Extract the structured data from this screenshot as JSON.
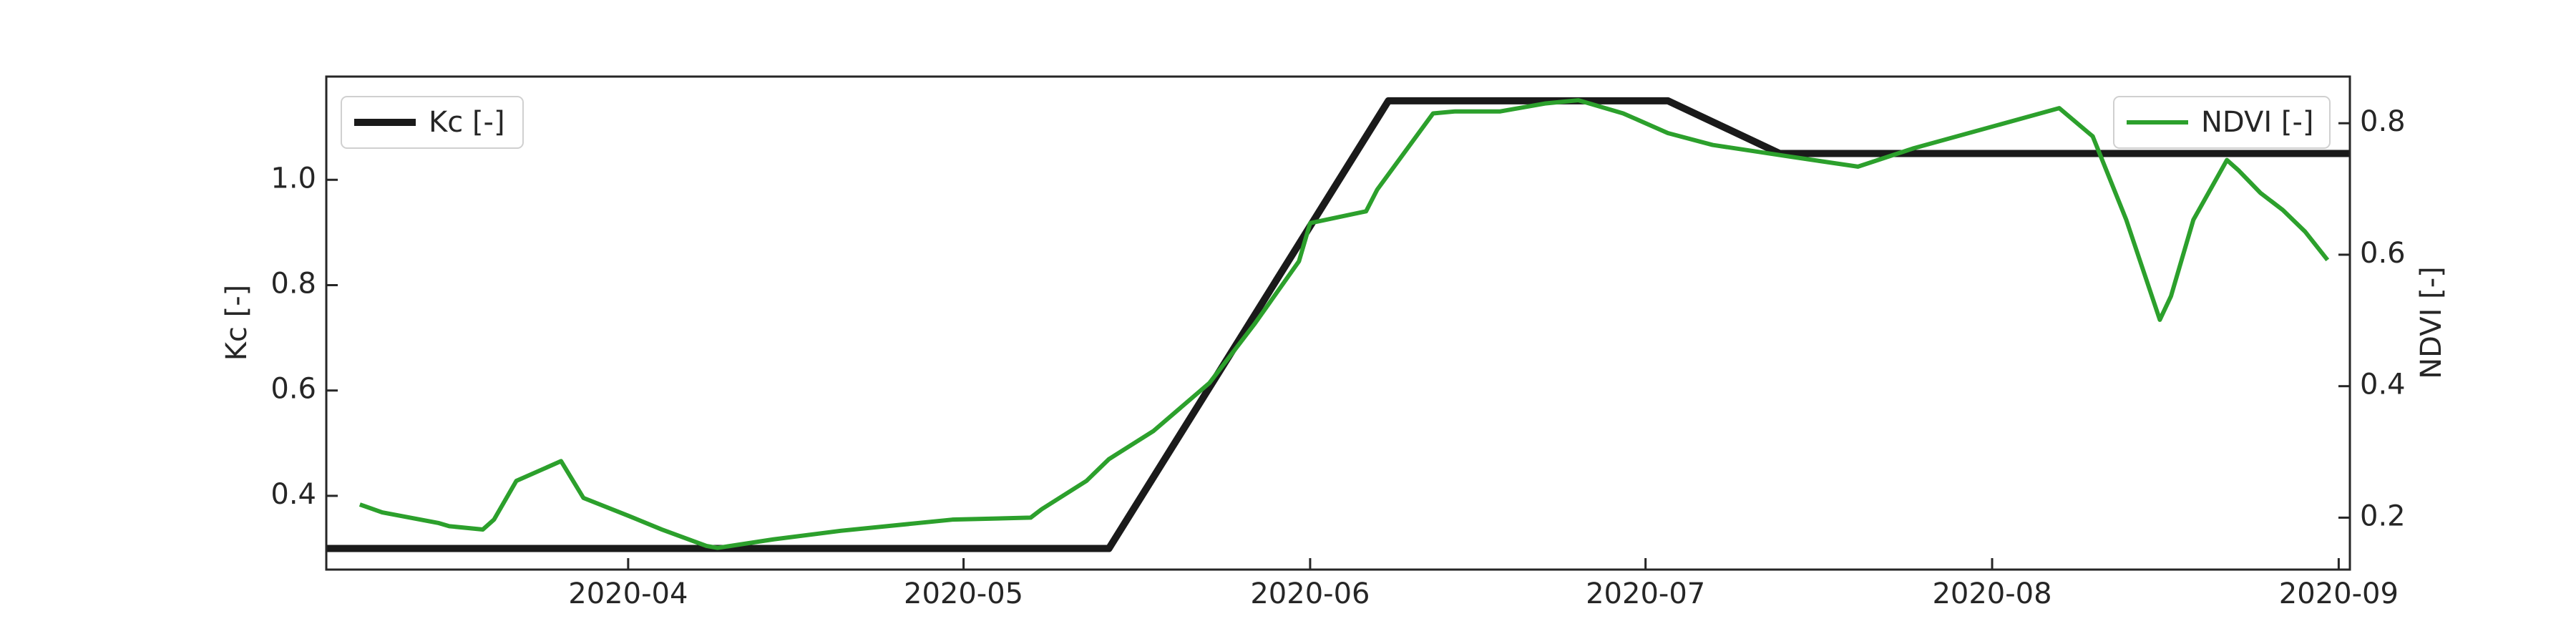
{
  "chart_data": {
    "type": "line",
    "xlim": [
      "2020-03-05",
      "2020-09-02"
    ],
    "xticks": [
      {
        "value": "2020-04-01",
        "label": "2020-04"
      },
      {
        "value": "2020-05-01",
        "label": "2020-05"
      },
      {
        "value": "2020-06-01",
        "label": "2020-06"
      },
      {
        "value": "2020-07-01",
        "label": "2020-07"
      },
      {
        "value": "2020-08-01",
        "label": "2020-08"
      },
      {
        "value": "2020-09-01",
        "label": "2020-09"
      }
    ],
    "ylabel": "Kc [-]",
    "ylim": [
      0.26,
      1.196
    ],
    "yticks": [
      0.4,
      0.6,
      0.8,
      {
        "value": 1,
        "label": "1.0"
      }
    ],
    "y2label": "NDVI [-]",
    "y2lim": [
      0.121,
      0.871
    ],
    "y2ticks": [
      0.2,
      0.4,
      0.6,
      0.8
    ],
    "series": [
      {
        "name": "Kc [-]",
        "color": "#1a1a1a",
        "axis": "y",
        "legend": "upper left",
        "x": [
          "2020-03-05",
          "2020-05-14",
          "2020-06-08",
          "2020-07-03",
          "2020-07-13",
          "2020-09-02"
        ],
        "values": [
          0.3,
          0.3,
          1.15,
          1.15,
          1.05,
          1.05
        ]
      },
      {
        "name": "NDVI [-]",
        "color": "#2ca02c",
        "axis": "y2",
        "legend": "upper right",
        "x": [
          "2020-03-08",
          "2020-03-10",
          "2020-03-15",
          "2020-03-16",
          "2020-03-19",
          "2020-03-20",
          "2020-03-22",
          "2020-03-26",
          "2020-03-28",
          "2020-04-01",
          "2020-04-04",
          "2020-04-08",
          "2020-04-09",
          "2020-04-14",
          "2020-04-20",
          "2020-04-30",
          "2020-05-07",
          "2020-05-08",
          "2020-05-12",
          "2020-05-14",
          "2020-05-18",
          "2020-05-23",
          "2020-05-27",
          "2020-05-31",
          "2020-06-01",
          "2020-06-06",
          "2020-06-07",
          "2020-06-12",
          "2020-06-14",
          "2020-06-18",
          "2020-06-22",
          "2020-06-25",
          "2020-06-29",
          "2020-07-03",
          "2020-07-07",
          "2020-07-14",
          "2020-07-20",
          "2020-07-25",
          "2020-08-07",
          "2020-08-10",
          "2020-08-13",
          "2020-08-16",
          "2020-08-17",
          "2020-08-19",
          "2020-08-22",
          "2020-08-23",
          "2020-08-25",
          "2020-08-27",
          "2020-08-29",
          "2020-08-31"
        ],
        "values": [
          0.22,
          0.208,
          0.192,
          0.187,
          0.182,
          0.197,
          0.256,
          0.286,
          0.23,
          0.203,
          0.182,
          0.157,
          0.154,
          0.167,
          0.18,
          0.197,
          0.2,
          0.213,
          0.256,
          0.289,
          0.332,
          0.405,
          0.494,
          0.59,
          0.648,
          0.666,
          0.699,
          0.815,
          0.818,
          0.818,
          0.83,
          0.835,
          0.815,
          0.785,
          0.767,
          0.749,
          0.734,
          0.762,
          0.823,
          0.78,
          0.653,
          0.501,
          0.537,
          0.653,
          0.744,
          0.729,
          0.694,
          0.668,
          0.635,
          0.592
        ]
      }
    ]
  }
}
